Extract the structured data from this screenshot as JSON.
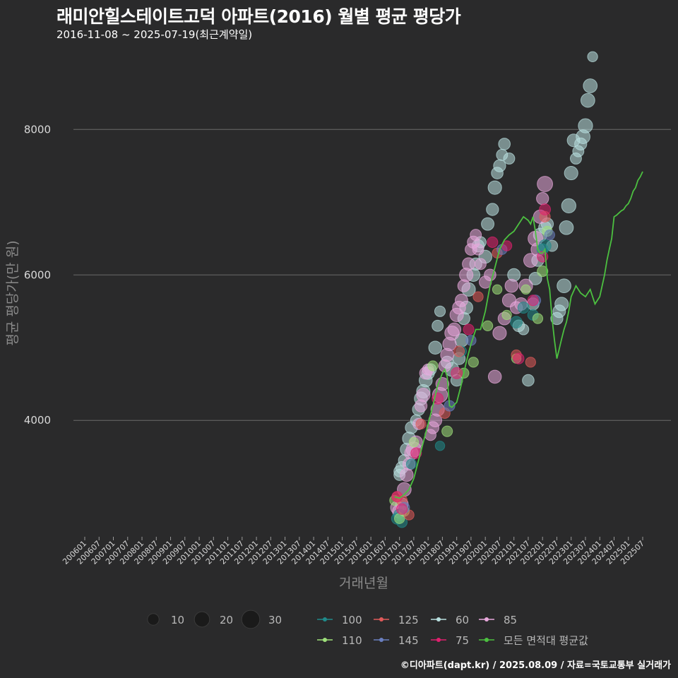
{
  "title": "래미안힐스테이트고덕 아파트(2016) 월별 평균 평당가",
  "subtitle": "2016-11-08 ~ 2025-07-19(최근계약일)",
  "footer": "©디아파트(dapt.kr) / 2025.08.09 / 자료=국토교통부 실거래가",
  "chart_data": {
    "type": "scatter",
    "xlabel": "거래년월",
    "ylabel": "평균 평당가(만 원)",
    "ylim": [
      2400,
      9100
    ],
    "yticks": [
      4000,
      6000,
      8000
    ],
    "grid": "horizontal",
    "x_tick_labels": [
      "200601",
      "200607",
      "200701",
      "200707",
      "200801",
      "200807",
      "200901",
      "200907",
      "201001",
      "201007",
      "201101",
      "201107",
      "201201",
      "201207",
      "201301",
      "201307",
      "201401",
      "201407",
      "201501",
      "201507",
      "201601",
      "201607",
      "201701",
      "201707",
      "201801",
      "201807",
      "201901",
      "201907",
      "202001",
      "202007",
      "202101",
      "202107",
      "202201",
      "202207",
      "202301",
      "202307",
      "202401",
      "202407",
      "202501",
      "202507"
    ],
    "size_legend": [
      10,
      20,
      30
    ],
    "colors": {
      "60": "#b9e0e0",
      "75": "#e0206e",
      "85": "#e8a8dc",
      "100": "#1f8a8a",
      "110": "#9ee07a",
      "125": "#e05a5a",
      "145": "#6a7fc0",
      "avg": "#4cc040"
    },
    "legend_order": [
      "100",
      "110",
      "125",
      "145",
      "60",
      "75",
      "85",
      "avg"
    ],
    "legend_labels": {
      "100": "100",
      "110": "110",
      "125": "125",
      "145": "145",
      "60": "60",
      "75": "75",
      "85": "85",
      "avg": "모든 면적대 평균값"
    },
    "average_line": {
      "name": "모든 면적대 평균값",
      "x": [
        "2016-11",
        "2017-01",
        "2017-03",
        "2017-05",
        "2017-07",
        "2017-09",
        "2017-11",
        "2018-01",
        "2018-03",
        "2018-05",
        "2018-07",
        "2018-08",
        "2018-09",
        "2018-10",
        "2018-11",
        "2019-01",
        "2019-03",
        "2019-05",
        "2019-07",
        "2019-09",
        "2019-11",
        "2020-01",
        "2020-03",
        "2020-05",
        "2020-07",
        "2020-09",
        "2020-11",
        "2021-01",
        "2021-03",
        "2021-05",
        "2021-07",
        "2021-08",
        "2021-09",
        "2021-10",
        "2021-11",
        "2021-12",
        "2022-01",
        "2022-02",
        "2022-03",
        "2022-04",
        "2022-05",
        "2022-06",
        "2022-07",
        "2022-08",
        "2022-09",
        "2022-10",
        "2022-11",
        "2022-12",
        "2023-01",
        "2023-03",
        "2023-05",
        "2023-07",
        "2023-09",
        "2023-11",
        "2024-01",
        "2024-02",
        "2024-03",
        "2024-04",
        "2024-05",
        "2024-06",
        "2024-07",
        "2024-08",
        "2024-09",
        "2024-10",
        "2024-11",
        "2024-12",
        "2025-01",
        "2025-02",
        "2025-03",
        "2025-04",
        "2025-05",
        "2025-06",
        "2025-07"
      ],
      "y": [
        2950,
        2930,
        2980,
        3050,
        3200,
        3450,
        3700,
        3950,
        4200,
        4480,
        4650,
        4700,
        4600,
        4200,
        4180,
        4250,
        4500,
        4800,
        5050,
        5250,
        5250,
        5500,
        5850,
        6100,
        6350,
        6480,
        6550,
        6600,
        6700,
        6800,
        6750,
        6700,
        6800,
        6600,
        6350,
        6300,
        6300,
        6350,
        5950,
        5800,
        5400,
        5100,
        4850,
        4980,
        5120,
        5250,
        5350,
        5500,
        5700,
        5850,
        5750,
        5700,
        5800,
        5600,
        5700,
        5850,
        6000,
        6200,
        6350,
        6500,
        6800,
        6820,
        6850,
        6880,
        6900,
        6950,
        6980,
        7050,
        7150,
        7200,
        7300,
        7350,
        7420
      ]
    },
    "series": [
      {
        "name": "60",
        "points": [
          [
            "2017-01",
            3250,
            8
          ],
          [
            "2017-01",
            3300,
            8
          ],
          [
            "2017-02",
            3350,
            10
          ],
          [
            "2017-03",
            3450,
            9
          ],
          [
            "2017-04",
            3600,
            11
          ],
          [
            "2017-05",
            3750,
            12
          ],
          [
            "2017-06",
            3900,
            10
          ],
          [
            "2017-08",
            4000,
            8
          ],
          [
            "2017-09",
            4150,
            10
          ],
          [
            "2017-10",
            4300,
            12
          ],
          [
            "2017-11",
            4400,
            13
          ],
          [
            "2017-12",
            4550,
            12
          ],
          [
            "2018-01",
            4650,
            11
          ],
          [
            "2018-02",
            4700,
            9
          ],
          [
            "2018-04",
            5000,
            12
          ],
          [
            "2018-05",
            5300,
            8
          ],
          [
            "2018-06",
            5500,
            7
          ],
          [
            "2018-09",
            4800,
            10
          ],
          [
            "2018-11",
            4700,
            14
          ],
          [
            "2019-01",
            4550,
            9
          ],
          [
            "2019-02",
            4850,
            10
          ],
          [
            "2019-03",
            5100,
            12
          ],
          [
            "2019-04",
            5400,
            10
          ],
          [
            "2019-05",
            5550,
            12
          ],
          [
            "2019-06",
            5800,
            13
          ],
          [
            "2019-08",
            6000,
            12
          ],
          [
            "2019-09",
            6150,
            10
          ],
          [
            "2019-10",
            6400,
            10
          ],
          [
            "2019-11",
            6450,
            8
          ],
          [
            "2020-01",
            6250,
            12
          ],
          [
            "2020-02",
            6700,
            11
          ],
          [
            "2020-04",
            6900,
            10
          ],
          [
            "2020-05",
            7200,
            13
          ],
          [
            "2020-06",
            7400,
            9
          ],
          [
            "2020-07",
            7500,
            10
          ],
          [
            "2020-08",
            7650,
            8
          ],
          [
            "2020-09",
            7800,
            9
          ],
          [
            "2020-11",
            7600,
            8
          ],
          [
            "2021-01",
            6000,
            11
          ],
          [
            "2021-03",
            5300,
            9
          ],
          [
            "2021-05",
            5250,
            7
          ],
          [
            "2021-07",
            4550,
            9
          ],
          [
            "2021-09",
            5600,
            10
          ],
          [
            "2021-10",
            5950,
            11
          ],
          [
            "2021-11",
            6200,
            10
          ],
          [
            "2021-12",
            6550,
            13
          ],
          [
            "2022-02",
            6650,
            11
          ],
          [
            "2022-03",
            6700,
            10
          ],
          [
            "2022-05",
            6400,
            8
          ],
          [
            "2022-07",
            5400,
            10
          ],
          [
            "2022-08",
            5500,
            11
          ],
          [
            "2022-09",
            5600,
            13
          ],
          [
            "2022-10",
            5850,
            14
          ],
          [
            "2022-11",
            6650,
            14
          ],
          [
            "2022-12",
            6950,
            15
          ],
          [
            "2023-01",
            7400,
            13
          ],
          [
            "2023-02",
            7850,
            11
          ],
          [
            "2023-03",
            7600,
            8
          ],
          [
            "2023-04",
            7700,
            8
          ],
          [
            "2023-05",
            7800,
            10
          ],
          [
            "2023-06",
            7900,
            14
          ],
          [
            "2023-07",
            8050,
            15
          ],
          [
            "2023-08",
            8400,
            14
          ],
          [
            "2023-09",
            8600,
            14
          ],
          [
            "2023-10",
            9000,
            6
          ]
        ]
      },
      {
        "name": "85",
        "points": [
          [
            "2016-12",
            2800,
            12
          ],
          [
            "2017-01",
            2750,
            14
          ],
          [
            "2017-02",
            2850,
            11
          ],
          [
            "2017-03",
            3050,
            14
          ],
          [
            "2017-04",
            3250,
            12
          ],
          [
            "2017-05",
            3400,
            10
          ],
          [
            "2017-06",
            3550,
            13
          ],
          [
            "2017-07",
            3600,
            17
          ],
          [
            "2017-08",
            3700,
            11
          ],
          [
            "2017-09",
            3950,
            8
          ],
          [
            "2017-10",
            4200,
            10
          ],
          [
            "2017-11",
            4350,
            13
          ],
          [
            "2017-12",
            4650,
            10
          ],
          [
            "2018-01",
            4700,
            8
          ],
          [
            "2018-02",
            3800,
            8
          ],
          [
            "2018-03",
            3900,
            10
          ],
          [
            "2018-04",
            4000,
            12
          ],
          [
            "2018-05",
            4150,
            13
          ],
          [
            "2018-06",
            4350,
            17
          ],
          [
            "2018-07",
            4500,
            12
          ],
          [
            "2018-08",
            4750,
            10
          ],
          [
            "2018-09",
            4900,
            12
          ],
          [
            "2018-10",
            5050,
            13
          ],
          [
            "2018-11",
            5200,
            15
          ],
          [
            "2018-12",
            5250,
            12
          ],
          [
            "2019-01",
            5450,
            13
          ],
          [
            "2019-02",
            5550,
            12
          ],
          [
            "2019-03",
            5650,
            11
          ],
          [
            "2019-04",
            5850,
            10
          ],
          [
            "2019-05",
            6000,
            13
          ],
          [
            "2019-06",
            6150,
            11
          ],
          [
            "2019-07",
            6350,
            9
          ],
          [
            "2019-08",
            6450,
            10
          ],
          [
            "2019-09",
            6550,
            8
          ],
          [
            "2019-10",
            6350,
            8
          ],
          [
            "2019-11",
            6150,
            8
          ],
          [
            "2020-01",
            5900,
            10
          ],
          [
            "2020-03",
            6000,
            9
          ],
          [
            "2020-05",
            4600,
            12
          ],
          [
            "2020-07",
            5200,
            13
          ],
          [
            "2020-09",
            5400,
            11
          ],
          [
            "2020-11",
            5650,
            13
          ],
          [
            "2020-12",
            5850,
            12
          ],
          [
            "2021-02",
            5550,
            10
          ],
          [
            "2021-04",
            5600,
            11
          ],
          [
            "2021-06",
            5850,
            13
          ],
          [
            "2021-08",
            6200,
            14
          ],
          [
            "2021-10",
            6500,
            16
          ],
          [
            "2021-11",
            6350,
            13
          ],
          [
            "2021-12",
            6800,
            13
          ],
          [
            "2022-01",
            7050,
            10
          ],
          [
            "2022-02",
            7250,
            18
          ]
        ]
      },
      {
        "name": "100",
        "points": [
          [
            "2016-12",
            2650,
            8
          ],
          [
            "2017-01",
            2700,
            9
          ],
          [
            "2017-02",
            2600,
            7
          ],
          [
            "2017-06",
            3400,
            6
          ],
          [
            "2018-06",
            3650,
            5
          ],
          [
            "2019-03",
            4950,
            6
          ],
          [
            "2021-02",
            5350,
            9
          ],
          [
            "2021-05",
            5550,
            8
          ],
          [
            "2021-09",
            5450,
            7
          ],
          [
            "2022-01",
            6350,
            8
          ],
          [
            "2022-02",
            6400,
            10
          ]
        ]
      },
      {
        "name": "110",
        "points": [
          [
            "2016-11",
            2900,
            6
          ],
          [
            "2017-01",
            2650,
            6
          ],
          [
            "2017-03",
            2750,
            6
          ],
          [
            "2017-07",
            3700,
            5
          ],
          [
            "2018-03",
            4750,
            6
          ],
          [
            "2018-09",
            3850,
            7
          ],
          [
            "2019-04",
            4650,
            6
          ],
          [
            "2019-08",
            4800,
            6
          ],
          [
            "2020-02",
            5300,
            6
          ],
          [
            "2020-06",
            5800,
            5
          ],
          [
            "2020-10",
            5450,
            5
          ],
          [
            "2021-02",
            4850,
            5
          ],
          [
            "2021-06",
            5800,
            5
          ],
          [
            "2021-11",
            5400,
            6
          ],
          [
            "2022-01",
            6050,
            7
          ],
          [
            "2022-03",
            6600,
            6
          ]
        ]
      },
      {
        "name": "125",
        "points": [
          [
            "2016-12",
            2950,
            6
          ],
          [
            "2017-02",
            2900,
            7
          ],
          [
            "2017-05",
            2700,
            6
          ],
          [
            "2017-10",
            3950,
            6
          ],
          [
            "2018-08",
            4100,
            7
          ],
          [
            "2019-02",
            4950,
            7
          ],
          [
            "2019-10",
            5700,
            6
          ],
          [
            "2020-06",
            6300,
            6
          ],
          [
            "2021-02",
            4900,
            6
          ],
          [
            "2021-08",
            4800,
            6
          ],
          [
            "2022-02",
            6800,
            7
          ]
        ]
      },
      {
        "name": "145",
        "points": [
          [
            "2017-03",
            2800,
            7
          ],
          [
            "2018-10",
            4200,
            7
          ],
          [
            "2019-07",
            5100,
            6
          ],
          [
            "2020-08",
            6350,
            6
          ],
          [
            "2021-10",
            5650,
            7
          ],
          [
            "2022-04",
            6550,
            6
          ]
        ]
      },
      {
        "name": "75",
        "points": [
          [
            "2016-12",
            2950,
            7
          ],
          [
            "2017-02",
            2780,
            7
          ],
          [
            "2017-08",
            3550,
            7
          ],
          [
            "2018-05",
            4300,
            8
          ],
          [
            "2019-01",
            4650,
            8
          ],
          [
            "2019-06",
            5250,
            7
          ],
          [
            "2020-04",
            6450,
            7
          ],
          [
            "2020-10",
            6400,
            6
          ],
          [
            "2021-03",
            4850,
            7
          ],
          [
            "2021-09",
            5650,
            7
          ],
          [
            "2022-01",
            6250,
            7
          ],
          [
            "2022-02",
            6900,
            8
          ]
        ]
      }
    ]
  }
}
